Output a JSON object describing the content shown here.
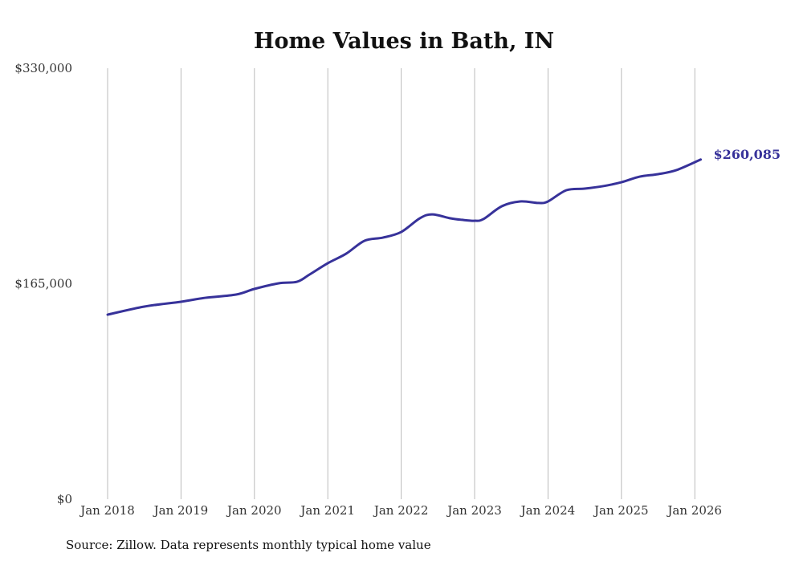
{
  "chart_data": {
    "type": "line",
    "title": "Home Values in Bath, IN",
    "xlabel": "",
    "ylabel": "",
    "ylim": [
      0,
      330000
    ],
    "y_ticks": [
      {
        "value": 0,
        "label": "$0"
      },
      {
        "value": 165000,
        "label": "$165,000"
      },
      {
        "value": 330000,
        "label": "$330,000"
      }
    ],
    "x_ticks": [
      {
        "value": 2018,
        "label": "Jan 2018"
      },
      {
        "value": 2019,
        "label": "Jan 2019"
      },
      {
        "value": 2020,
        "label": "Jan 2020"
      },
      {
        "value": 2021,
        "label": "Jan 2021"
      },
      {
        "value": 2022,
        "label": "Jan 2022"
      },
      {
        "value": 2023,
        "label": "Jan 2023"
      },
      {
        "value": 2024,
        "label": "Jan 2024"
      },
      {
        "value": 2025,
        "label": "Jan 2025"
      },
      {
        "value": 2026,
        "label": "Jan 2026"
      }
    ],
    "xlim": [
      2018,
      2026.1
    ],
    "grid": "vertical",
    "color": "#37329a",
    "series": [
      {
        "name": "Typical home value",
        "x": [
          2018.0,
          2018.5,
          2019.0,
          2019.33,
          2019.75,
          2020.0,
          2020.33,
          2020.58,
          2020.75,
          2021.0,
          2021.25,
          2021.5,
          2021.75,
          2022.0,
          2022.25,
          2022.42,
          2022.67,
          2022.83,
          2023.0,
          2023.12,
          2023.37,
          2023.62,
          2023.87,
          2024.0,
          2024.25,
          2024.5,
          2024.75,
          2025.0,
          2025.25,
          2025.5,
          2025.75,
          2026.08
        ],
        "values": [
          141300,
          147500,
          151200,
          154200,
          156700,
          161000,
          165300,
          166500,
          172000,
          180700,
          188000,
          197900,
          200300,
          204600,
          215000,
          218100,
          215100,
          213900,
          213200,
          214500,
          224300,
          228000,
          226800,
          228000,
          236600,
          237800,
          239700,
          242700,
          247000,
          248900,
          252000,
          260085
        ]
      }
    ],
    "end_label": "$260,085",
    "source": "Source: Zillow. Data represents monthly typical home value"
  }
}
